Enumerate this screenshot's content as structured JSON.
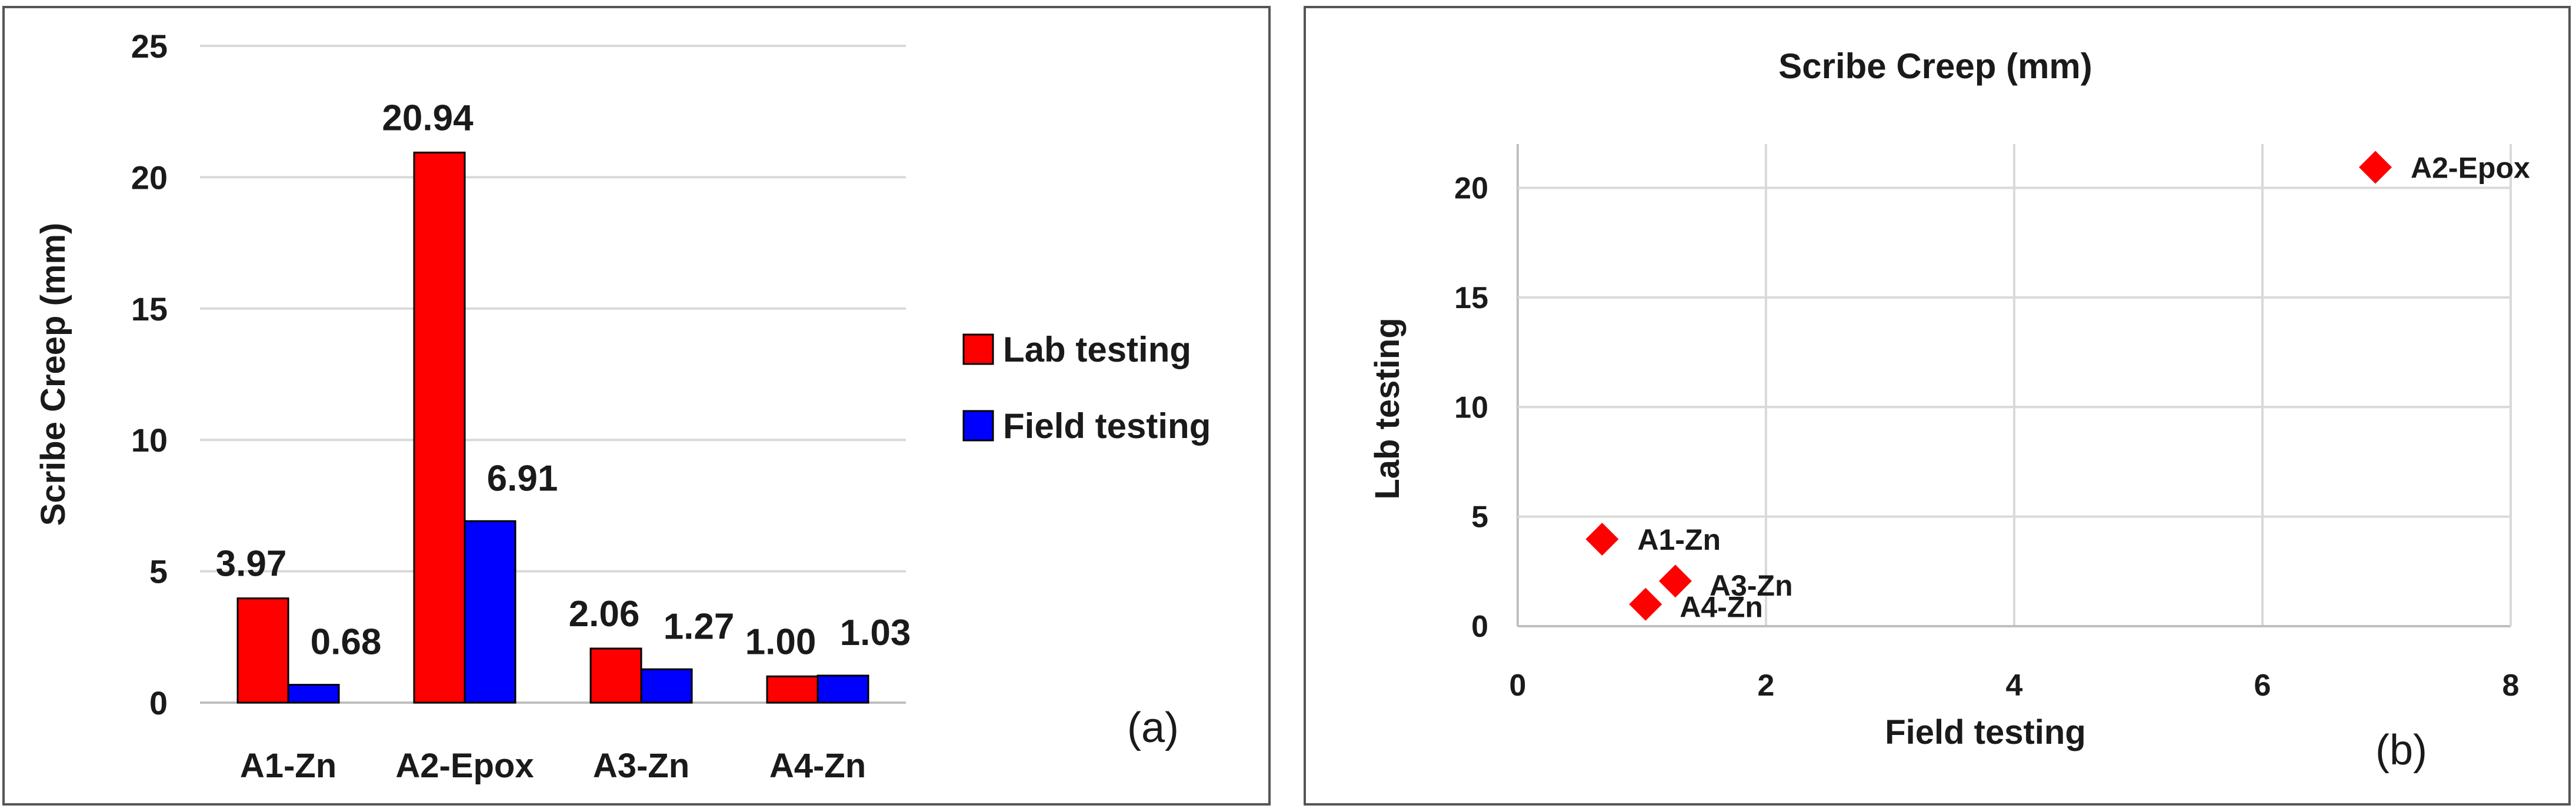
{
  "chart_data": [
    {
      "type": "bar",
      "panel_label": "(a)",
      "ylabel": "Scribe Creep (mm)",
      "xlabel": "",
      "ylim": [
        0,
        25
      ],
      "yticks": [
        0,
        5,
        10,
        15,
        20,
        25
      ],
      "categories": [
        "A1-Zn",
        "A2-Epox",
        "A3-Zn",
        "A4-Zn"
      ],
      "series": [
        {
          "name": "Lab testing",
          "color": "#ff0000",
          "values": [
            3.97,
            20.94,
            2.06,
            1.0
          ],
          "labels": [
            "3.97",
            "20.94",
            "2.06",
            "1.00"
          ]
        },
        {
          "name": "Field testing",
          "color": "#0000ff",
          "values": [
            0.68,
            6.91,
            1.27,
            1.03
          ],
          "labels": [
            "0.68",
            "6.91",
            "1.27",
            "1.03"
          ]
        }
      ],
      "legend_position": "right",
      "grid": true
    },
    {
      "type": "scatter",
      "panel_label": "(b)",
      "title": "Scribe Creep (mm)",
      "xlabel": "Field testing",
      "ylabel": "Lab testing",
      "xlim": [
        0,
        8
      ],
      "ylim": [
        0,
        22
      ],
      "xticks": [
        0,
        2,
        4,
        6,
        8
      ],
      "yticks": [
        0,
        5,
        10,
        15,
        20
      ],
      "marker_color": "#ff0000",
      "points": [
        {
          "label": "A1-Zn",
          "x": 0.68,
          "y": 3.97
        },
        {
          "label": "A2-Epox",
          "x": 6.91,
          "y": 20.94
        },
        {
          "label": "A3-Zn",
          "x": 1.27,
          "y": 2.06
        },
        {
          "label": "A4-Zn",
          "x": 1.03,
          "y": 1.0
        }
      ],
      "grid": true
    }
  ]
}
